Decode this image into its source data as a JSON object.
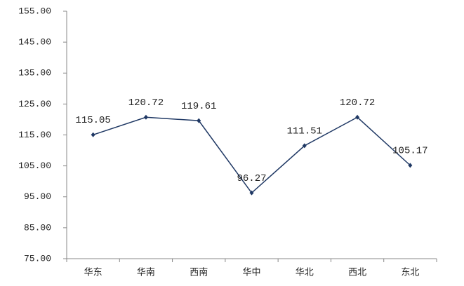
{
  "chart_data": {
    "type": "line",
    "categories": [
      "华东",
      "华南",
      "西南",
      "华中",
      "华北",
      "西北",
      "东北"
    ],
    "values": [
      115.05,
      120.72,
      119.61,
      96.27,
      111.51,
      120.72,
      105.17
    ],
    "color": "#1f3864",
    "ylim": [
      75,
      155
    ],
    "yticks": [
      {
        "value": 75,
        "label": "75.00"
      },
      {
        "value": 85,
        "label": "85.00"
      },
      {
        "value": 95,
        "label": "95.00"
      },
      {
        "value": 105,
        "label": "105.00"
      },
      {
        "value": 115,
        "label": "115.00"
      },
      {
        "value": 125,
        "label": "125.00"
      },
      {
        "value": 135,
        "label": "135.00"
      },
      {
        "value": 145,
        "label": "145.00"
      },
      {
        "value": 155,
        "label": "155.00"
      }
    ]
  }
}
